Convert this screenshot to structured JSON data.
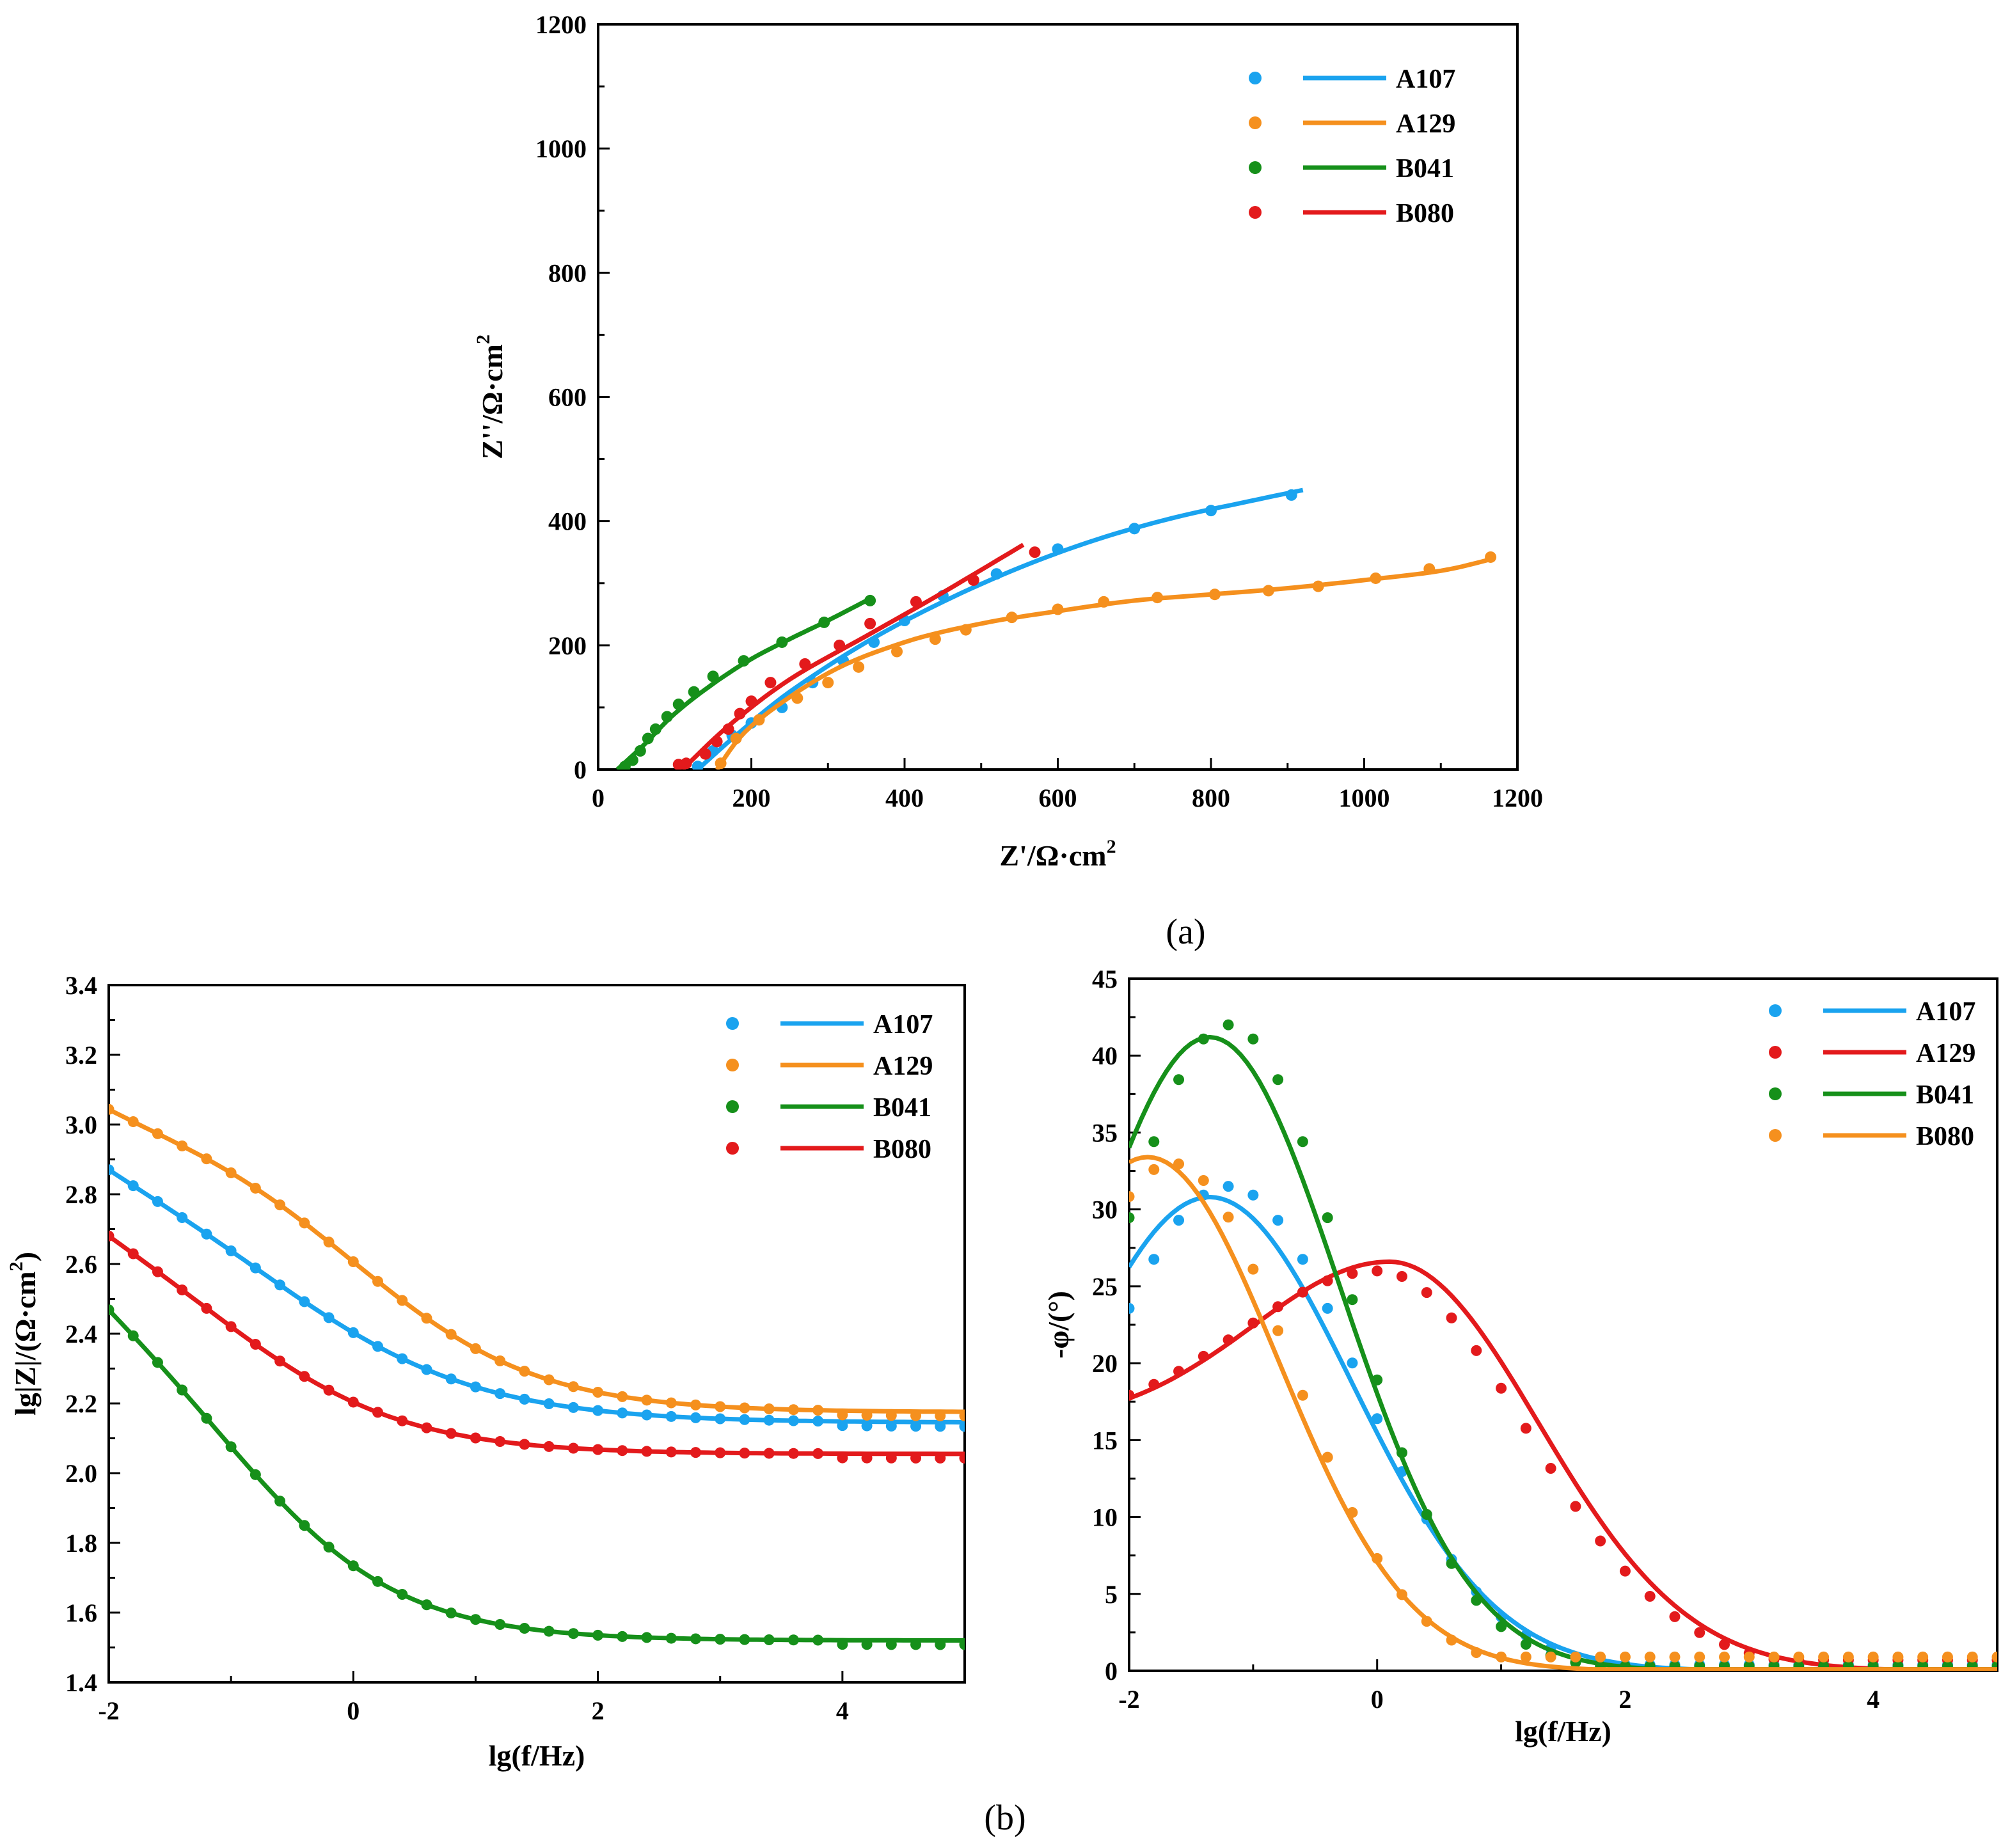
{
  "captions": {
    "a": "(a)",
    "b": "(b)"
  },
  "colors": {
    "blue": "#1aa3ef",
    "orange": "#f5901e",
    "green": "#16901a",
    "red": "#e31a1c"
  },
  "chart_data": [
    {
      "type": "scatter",
      "title": "",
      "xlabel": "Z'/Ω·cm",
      "ylabel": "Z''/Ω·cm",
      "superscript": "2",
      "xlim": [
        0,
        1200
      ],
      "ylim": [
        0,
        1200
      ],
      "xticks": [
        "0",
        "200",
        "400",
        "600",
        "800",
        "1000",
        "1200"
      ],
      "yticks": [
        "0",
        "200",
        "400",
        "600",
        "800",
        "1000",
        "1200"
      ],
      "legend_position": "top-right",
      "series": [
        {
          "name": "A107",
          "color": "#1aa3ef",
          "points": [
            [
              130,
              5
            ],
            [
              150,
              30
            ],
            [
              175,
              55
            ],
            [
              200,
              75
            ],
            [
              240,
              100
            ],
            [
              280,
              140
            ],
            [
              320,
              175
            ],
            [
              360,
              205
            ],
            [
              400,
              240
            ],
            [
              450,
              280
            ],
            [
              520,
              315
            ],
            [
              600,
              355
            ],
            [
              700,
              388
            ],
            [
              800,
              417
            ],
            [
              905,
              442
            ]
          ],
          "fit": [
            [
              130,
              0
            ],
            [
              180,
              55
            ],
            [
              250,
              125
            ],
            [
              350,
              205
            ],
            [
              450,
              270
            ],
            [
              550,
              325
            ],
            [
              650,
              370
            ],
            [
              750,
              405
            ],
            [
              850,
              432
            ],
            [
              920,
              450
            ]
          ]
        },
        {
          "name": "A129",
          "color": "#f5901e",
          "points": [
            [
              160,
              10
            ],
            [
              180,
              50
            ],
            [
              210,
              80
            ],
            [
              260,
              115
            ],
            [
              300,
              140
            ],
            [
              340,
              165
            ],
            [
              390,
              190
            ],
            [
              440,
              210
            ],
            [
              480,
              225
            ],
            [
              540,
              245
            ],
            [
              600,
              258
            ],
            [
              660,
              270
            ],
            [
              730,
              277
            ],
            [
              805,
              282
            ],
            [
              875,
              288
            ],
            [
              940,
              295
            ],
            [
              1015,
              308
            ],
            [
              1085,
              323
            ],
            [
              1165,
              342
            ]
          ],
          "fit": [
            [
              155,
              0
            ],
            [
              200,
              70
            ],
            [
              300,
              155
            ],
            [
              400,
              205
            ],
            [
              500,
              235
            ],
            [
              600,
              255
            ],
            [
              700,
              272
            ],
            [
              800,
              282
            ],
            [
              900,
              292
            ],
            [
              1000,
              305
            ],
            [
              1100,
              320
            ],
            [
              1170,
              340
            ]
          ]
        },
        {
          "name": "B041",
          "color": "#16901a",
          "points": [
            [
              35,
              5
            ],
            [
              45,
              15
            ],
            [
              55,
              30
            ],
            [
              65,
              50
            ],
            [
              75,
              65
            ],
            [
              90,
              85
            ],
            [
              105,
              105
            ],
            [
              125,
              125
            ],
            [
              150,
              150
            ],
            [
              190,
              175
            ],
            [
              240,
              205
            ],
            [
              295,
              237
            ],
            [
              355,
              272
            ]
          ],
          "fit": [
            [
              25,
              0
            ],
            [
              60,
              40
            ],
            [
              100,
              90
            ],
            [
              150,
              138
            ],
            [
              200,
              178
            ],
            [
              250,
              210
            ],
            [
              300,
              240
            ],
            [
              355,
              275
            ]
          ]
        },
        {
          "name": "B080",
          "color": "#e31a1c",
          "points": [
            [
              105,
              8
            ],
            [
              115,
              10
            ],
            [
              140,
              25
            ],
            [
              155,
              45
            ],
            [
              170,
              65
            ],
            [
              185,
              90
            ],
            [
              200,
              110
            ],
            [
              225,
              140
            ],
            [
              270,
              170
            ],
            [
              315,
              200
            ],
            [
              355,
              235
            ],
            [
              415,
              270
            ],
            [
              490,
              305
            ],
            [
              570,
              350
            ]
          ],
          "fit": [
            [
              110,
              0
            ],
            [
              170,
              70
            ],
            [
              250,
              145
            ],
            [
              350,
              215
            ],
            [
              450,
              285
            ],
            [
              555,
              362
            ]
          ]
        }
      ]
    },
    {
      "type": "scatter",
      "title": "",
      "xlabel": "lg(f/Hz)",
      "ylabel": "lg|Z|/(Ω·cm",
      "superscript": "2",
      "ylabel_tail": ")",
      "xlim": [
        -2,
        5
      ],
      "ylim": [
        1.4,
        3.4
      ],
      "xticks": [
        "-2",
        "0",
        "2",
        "4"
      ],
      "yticks": [
        "1.4",
        "1.6",
        "1.8",
        "2.0",
        "2.2",
        "2.4",
        "2.6",
        "2.8",
        "3.0",
        "3.2",
        "3.4"
      ],
      "legend_position": "top-right",
      "series": [
        {
          "name": "A107",
          "color": "#1aa3ef",
          "base": 2.145,
          "amp": 0.865,
          "centre": -0.6,
          "width": 0.85
        },
        {
          "name": "A129",
          "color": "#f5901e",
          "base": 2.175,
          "amp": 0.925,
          "centre": 0.05,
          "width": 0.75
        },
        {
          "name": "B041",
          "color": "#16901a",
          "base": 1.52,
          "amp": 1.16,
          "centre": -0.95,
          "width": 0.7
        },
        {
          "name": "B080",
          "color": "#e31a1c",
          "base": 2.055,
          "amp": 0.79,
          "centre": -1.0,
          "width": 0.75
        }
      ]
    },
    {
      "type": "scatter",
      "title": "",
      "xlabel": "lg(f/Hz)",
      "ylabel": "-φ/(°)",
      "xlim": [
        -2,
        5
      ],
      "ylim": [
        0,
        45
      ],
      "xticks": [
        "-2",
        "0",
        "2",
        "4"
      ],
      "yticks": [
        "0",
        "5",
        "10",
        "15",
        "20",
        "25",
        "30",
        "35",
        "40",
        "45"
      ],
      "legend_position": "top-right",
      "series": [
        {
          "name": "A107",
          "color": "#1aa3ef",
          "fit_peak": 30.8,
          "fit_centre": -1.35,
          "fit_width": 1.15,
          "pt_peak": 31.5,
          "pt_centre": -1.2,
          "pt_width": 1.05,
          "pt_floor": 0.4
        },
        {
          "name": "A129",
          "color": "#e31a1c",
          "fit_peak": 26.6,
          "fit_centre": 0.1,
          "fit_width": 1.2,
          "fit_low": 16.0,
          "pt_peak": 26.0,
          "pt_centre": 0.0,
          "pt_width": 1.2,
          "pt_low": 16.0,
          "pt_floor": 0.7
        },
        {
          "name": "B041",
          "color": "#16901a",
          "fit_peak": 41.2,
          "fit_centre": -1.35,
          "fit_width": 1.05,
          "pt_peak": 42.0,
          "pt_centre": -1.2,
          "pt_width": 0.95,
          "pt_floor": 0.3
        },
        {
          "name": "B080",
          "color": "#f5901e",
          "fit_peak": 33.4,
          "fit_centre": -1.85,
          "fit_width": 1.05,
          "pt_peak": 33.0,
          "pt_centre": -1.65,
          "pt_width": 0.95,
          "pt_floor": 0.9
        }
      ]
    }
  ]
}
